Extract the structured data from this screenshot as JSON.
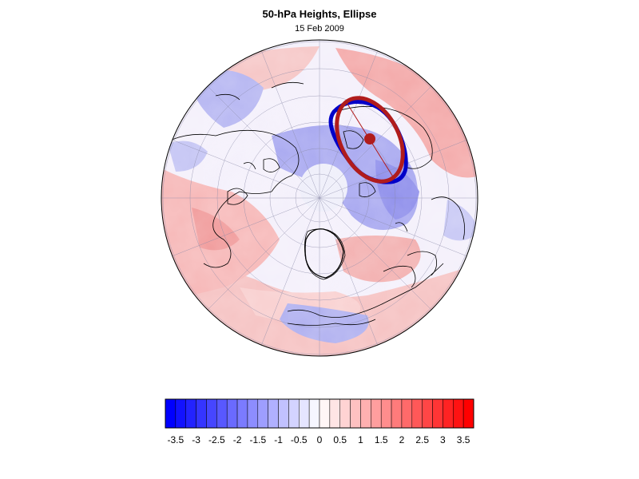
{
  "title": "50-hPa Heights, Ellipse",
  "subtitle": "15 Feb 2009",
  "colors": {
    "negative_max": "#0000ff",
    "neutral": "#ffffff",
    "positive_max": "#ff0000",
    "ellipse_fit": "#b01c1c",
    "contour_observed": "#0000c8",
    "coastline": "#000000"
  },
  "colorbar": {
    "min": -3.75,
    "max": 3.75,
    "step": 0.25,
    "tick_labels": [
      "-3.5",
      "-3",
      "-2.5",
      "-2",
      "-1.5",
      "-1",
      "-0.5",
      "0",
      "0.5",
      "1",
      "1.5",
      "2",
      "2.5",
      "3",
      "3.5"
    ]
  }
}
